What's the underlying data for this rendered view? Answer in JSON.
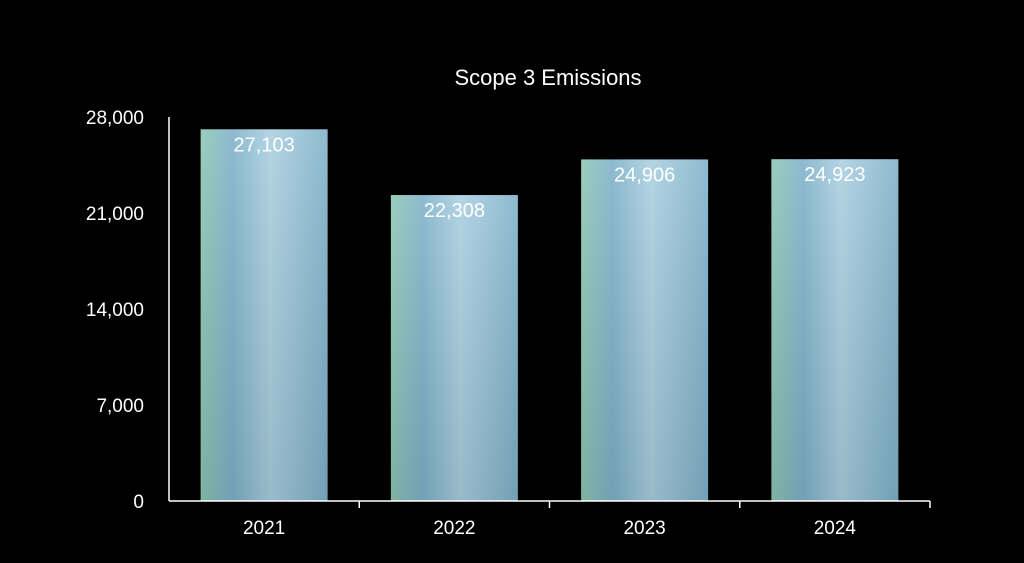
{
  "chart_data": {
    "type": "bar",
    "title": "Scope 3 Emissions",
    "xlabel": "",
    "ylabel": "",
    "categories": [
      "2021",
      "2022",
      "2023",
      "2024"
    ],
    "values": [
      27103,
      22308,
      24906,
      24923
    ],
    "data_labels": [
      "27,103",
      "22,308",
      "24,906",
      "24,923"
    ],
    "ylim": [
      0,
      28000
    ],
    "yticks": [
      0,
      7000,
      14000,
      21000,
      28000
    ],
    "ytick_labels": [
      "0",
      "7,000",
      "14,000",
      "21,000",
      "28,000"
    ],
    "grid": false,
    "legend": "none",
    "colors": {
      "background": "#000000",
      "text": "#ffffff",
      "bar_light": "#a9cfe0",
      "bar_mid": "#7fb1c9",
      "bar_dark": "#5d93ae",
      "bar_accent": "#8cc7b4"
    }
  }
}
